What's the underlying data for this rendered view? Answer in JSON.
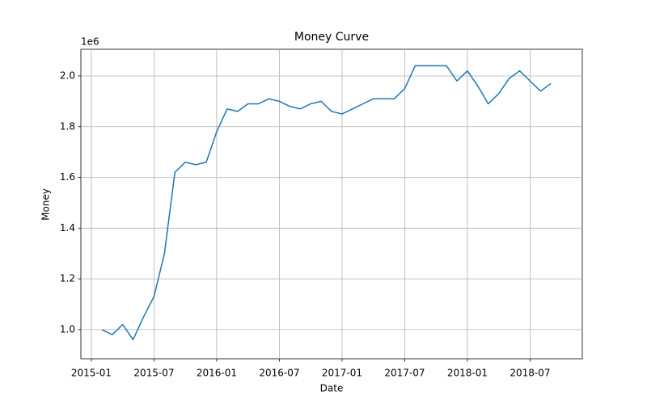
{
  "chart_data": {
    "type": "line",
    "title": "Money Curve",
    "xlabel": "Date",
    "ylabel": "Money",
    "y_offset_label": "1e6",
    "x": [
      "2015-02",
      "2015-03",
      "2015-04",
      "2015-05",
      "2015-06",
      "2015-07",
      "2015-08",
      "2015-09",
      "2015-10",
      "2015-11",
      "2015-12",
      "2016-01",
      "2016-02",
      "2016-03",
      "2016-04",
      "2016-05",
      "2016-06",
      "2016-07",
      "2016-08",
      "2016-09",
      "2016-10",
      "2016-11",
      "2016-12",
      "2017-01",
      "2017-02",
      "2017-03",
      "2017-04",
      "2017-05",
      "2017-06",
      "2017-07",
      "2017-08",
      "2017-09",
      "2017-10",
      "2017-11",
      "2017-12",
      "2018-01",
      "2018-02",
      "2018-03",
      "2018-04",
      "2018-05",
      "2018-06",
      "2018-07",
      "2018-08",
      "2018-09"
    ],
    "series": [
      {
        "color": "#1f77b4",
        "values": [
          1.0,
          0.98,
          1.02,
          0.96,
          1.05,
          1.13,
          1.3,
          1.62,
          1.66,
          1.65,
          1.66,
          1.78,
          1.87,
          1.86,
          1.89,
          1.89,
          1.91,
          1.9,
          1.88,
          1.87,
          1.89,
          1.9,
          1.86,
          1.85,
          1.87,
          1.89,
          1.91,
          1.91,
          1.91,
          1.95,
          2.04,
          2.04,
          2.04,
          2.04,
          1.98,
          2.02,
          1.96,
          1.89,
          1.93,
          1.99,
          2.02,
          1.98,
          1.94,
          1.97
        ]
      }
    ],
    "xlim": [
      "2014-12",
      "2018-12"
    ],
    "xticks": [
      "2015-01",
      "2015-07",
      "2016-01",
      "2016-07",
      "2017-01",
      "2017-07",
      "2018-01",
      "2018-07"
    ],
    "ylim": [
      0.885,
      2.105
    ],
    "yticks": [
      {
        "value": 1.0,
        "label": "1.0"
      },
      {
        "value": 1.2,
        "label": "1.2"
      },
      {
        "value": 1.4,
        "label": "1.4"
      },
      {
        "value": 1.6,
        "label": "1.6"
      },
      {
        "value": 1.8,
        "label": "1.8"
      },
      {
        "value": 2.0,
        "label": "2.0"
      }
    ],
    "grid": true
  }
}
